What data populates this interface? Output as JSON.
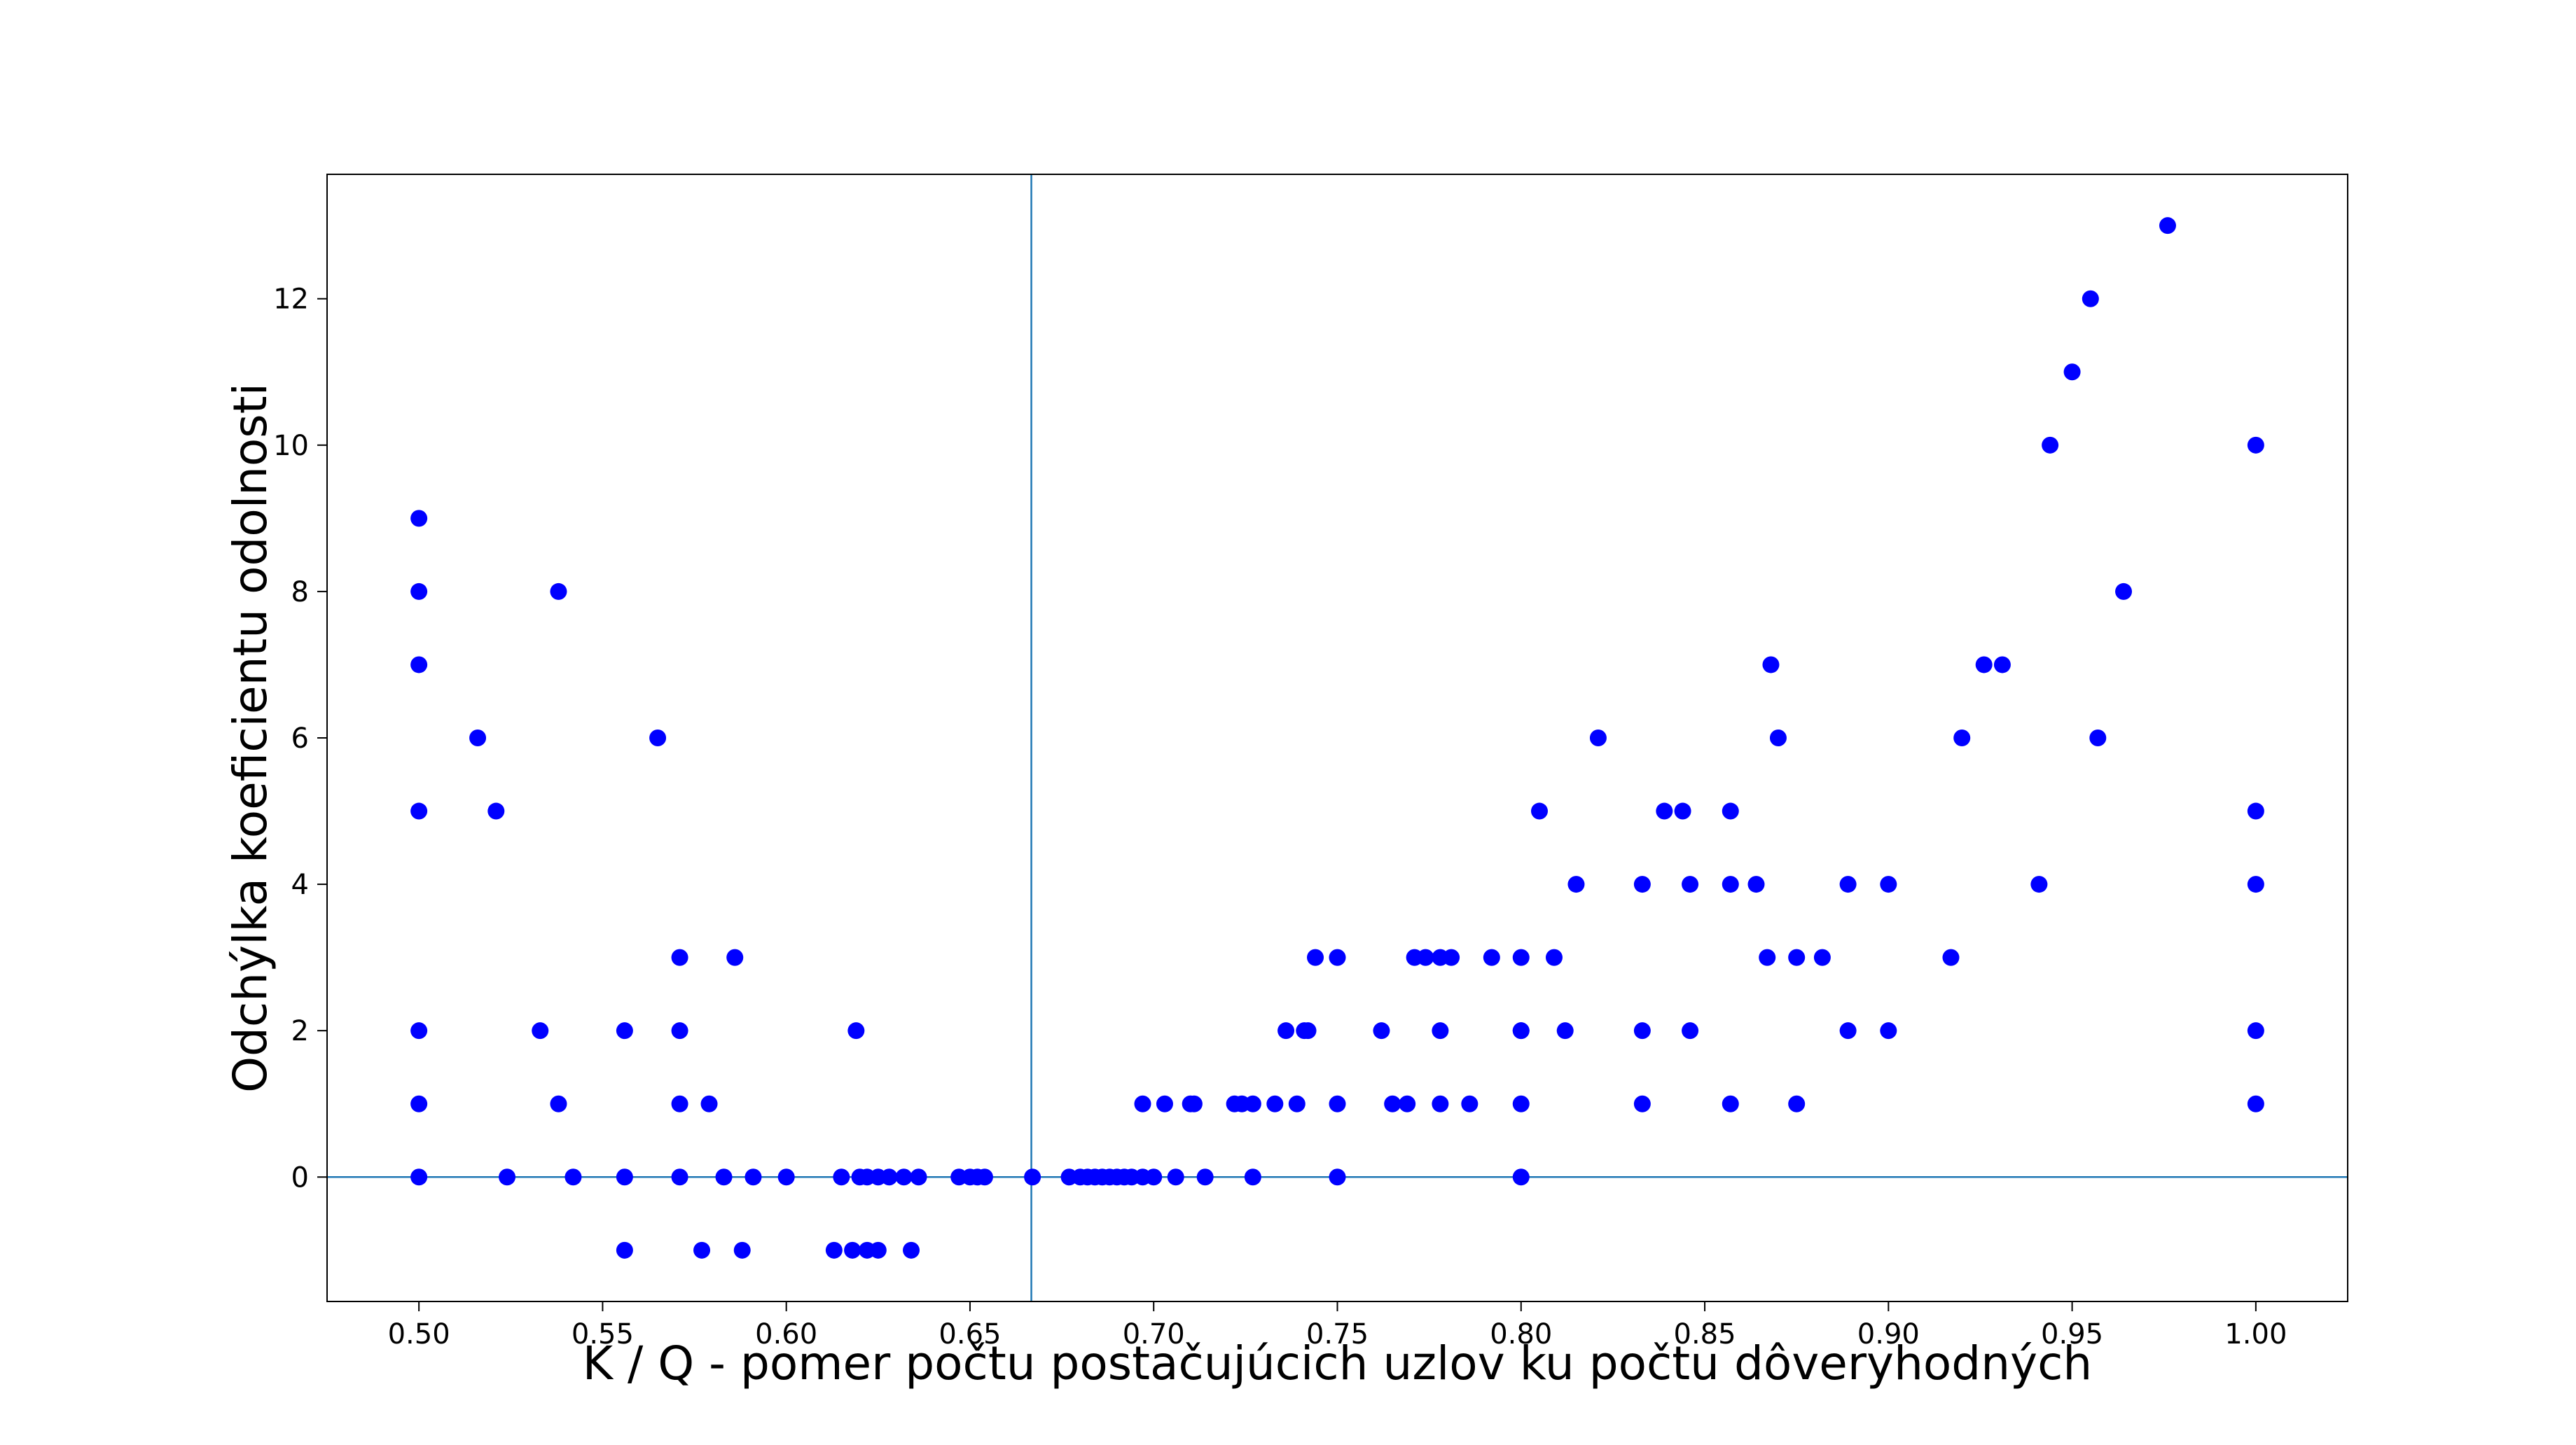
{
  "chart_data": {
    "type": "scatter",
    "title": "",
    "xlabel": "K / Q - pomer počtu postačujúcich uzlov ku počtu dôveryhodných",
    "ylabel": "Odchýlka koeficientu odolnosti",
    "xlim": [
      0.475,
      1.025
    ],
    "ylim": [
      -1.7,
      13.7
    ],
    "xticks": [
      0.5,
      0.55,
      0.6,
      0.65,
      0.7,
      0.75,
      0.8,
      0.85,
      0.9,
      0.95,
      1.0
    ],
    "xtick_labels": [
      "0.50",
      "0.55",
      "0.60",
      "0.65",
      "0.70",
      "0.75",
      "0.80",
      "0.85",
      "0.90",
      "0.95",
      "1.00"
    ],
    "yticks": [
      0,
      2,
      4,
      6,
      8,
      10,
      12
    ],
    "ytick_labels": [
      "0",
      "2",
      "4",
      "6",
      "8",
      "10",
      "12"
    ],
    "grid": false,
    "point_color": "#0000ff",
    "reference_line_color": "#1f77b4",
    "reference_lines": {
      "vertical_x": 0.6667,
      "horizontal_y": 0
    },
    "series": [
      {
        "x": [
          0.5,
          0.5,
          0.5,
          0.5,
          0.5,
          0.5,
          0.5,
          0.516,
          0.521,
          0.524,
          0.533,
          0.538,
          0.538,
          0.542,
          0.556,
          0.556,
          0.556,
          0.565,
          0.571,
          0.571,
          0.571,
          0.571,
          0.577,
          0.579,
          0.583,
          0.586,
          0.588,
          0.591,
          0.6,
          0.613,
          0.615,
          0.618,
          0.619,
          0.62,
          0.622,
          0.622,
          0.625,
          0.625,
          0.628,
          0.632,
          0.634,
          0.636,
          0.647,
          0.65,
          0.652,
          0.654,
          0.667,
          0.677,
          0.68,
          0.682,
          0.684,
          0.686,
          0.688,
          0.69,
          0.692,
          0.694,
          0.697,
          0.697,
          0.7,
          0.703,
          0.706,
          0.71,
          0.711,
          0.714,
          0.722,
          0.724,
          0.727,
          0.727,
          0.733,
          0.736,
          0.739,
          0.741,
          0.742,
          0.744,
          0.75,
          0.75,
          0.75,
          0.762,
          0.765,
          0.769,
          0.771,
          0.774,
          0.778,
          0.778,
          0.778,
          0.781,
          0.786,
          0.792,
          0.8,
          0.8,
          0.8,
          0.8,
          0.8,
          0.805,
          0.809,
          0.812,
          0.815,
          0.821,
          0.833,
          0.833,
          0.833,
          0.839,
          0.844,
          0.846,
          0.846,
          0.857,
          0.857,
          0.857,
          0.864,
          0.867,
          0.868,
          0.87,
          0.875,
          0.875,
          0.882,
          0.889,
          0.889,
          0.9,
          0.9,
          0.917,
          0.92,
          0.926,
          0.931,
          0.941,
          0.944,
          0.95,
          0.955,
          0.957,
          0.964,
          0.976,
          1.0,
          1.0,
          1.0,
          1.0,
          1.0
        ],
        "y": [
          9,
          8,
          7,
          5,
          2,
          1,
          0,
          6,
          5,
          0,
          2,
          8,
          1,
          0,
          2,
          0,
          -1,
          6,
          3,
          2,
          1,
          0,
          -1,
          1,
          0,
          3,
          -1,
          0,
          0,
          -1,
          0,
          -1,
          2,
          0,
          -1,
          0,
          -1,
          0,
          0,
          0,
          -1,
          0,
          0,
          0,
          0,
          0,
          0,
          0,
          0,
          0,
          0,
          0,
          0,
          0,
          0,
          0,
          0,
          1,
          0,
          1,
          0,
          1,
          1,
          0,
          1,
          1,
          1,
          0,
          1,
          2,
          1,
          2,
          2,
          3,
          3,
          1,
          0,
          2,
          1,
          1,
          3,
          3,
          3,
          2,
          1,
          3,
          1,
          3,
          3,
          2,
          2,
          1,
          0,
          5,
          3,
          2,
          4,
          6,
          4,
          2,
          1,
          5,
          5,
          4,
          2,
          5,
          4,
          1,
          4,
          3,
          7,
          6,
          3,
          1,
          3,
          4,
          2,
          4,
          2,
          3,
          6,
          7,
          7,
          4,
          10,
          11,
          12,
          6,
          8,
          13,
          10,
          5,
          4,
          2,
          1
        ]
      }
    ]
  }
}
